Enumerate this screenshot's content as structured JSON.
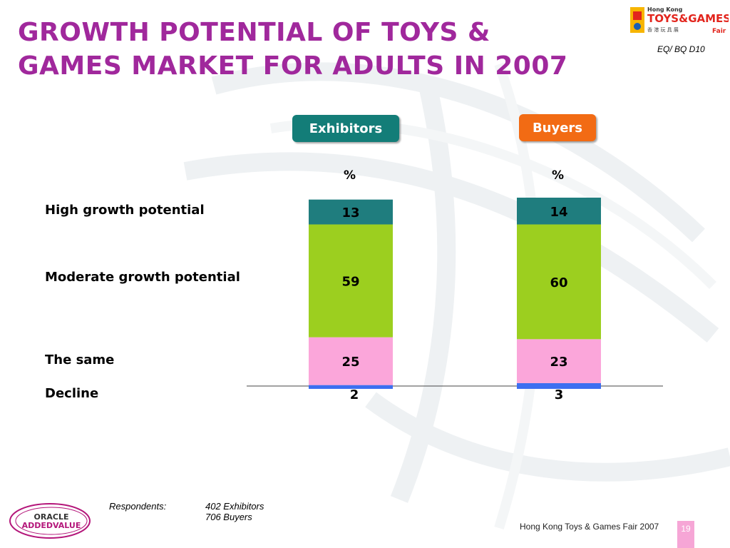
{
  "slide": {
    "title_line1": "GROWTH POTENTIAL OF TOYS &",
    "title_line2": "GAMES MARKET FOR ADULTS IN 2007",
    "reference": "EQ/ BQ D10",
    "logo_text_top": "Hong Kong",
    "logo_text_main": "TOYS&GAMES",
    "logo_text_sub": "香 港 玩 具 展",
    "logo_text_fair": "Fair",
    "respondents_label": "Respondents:",
    "respondents_line1": "402 Exhibitors",
    "respondents_line2": "706 Buyers",
    "footer": "Hong Kong Toys & Games Fair 2007",
    "page_number": "19",
    "company_logo_line1": "ORACLE",
    "company_logo_line2": "ADDEDVALUE"
  },
  "chart_data": {
    "type": "bar",
    "stacked": true,
    "unit": "%",
    "categories": [
      "Exhibitors",
      "Buyers"
    ],
    "category_colors": [
      "#137d78",
      "#f26b14"
    ],
    "series": [
      {
        "name": "Decline",
        "color": "#3d6ff0",
        "values": [
          2,
          3
        ]
      },
      {
        "name": "The same",
        "color": "#fba6da",
        "values": [
          25,
          23
        ]
      },
      {
        "name": "Moderate growth potential",
        "color": "#9ccf1f",
        "values": [
          59,
          60
        ]
      },
      {
        "name": "High growth potential",
        "color": "#1f7d7e",
        "values": [
          13,
          14
        ]
      }
    ]
  }
}
